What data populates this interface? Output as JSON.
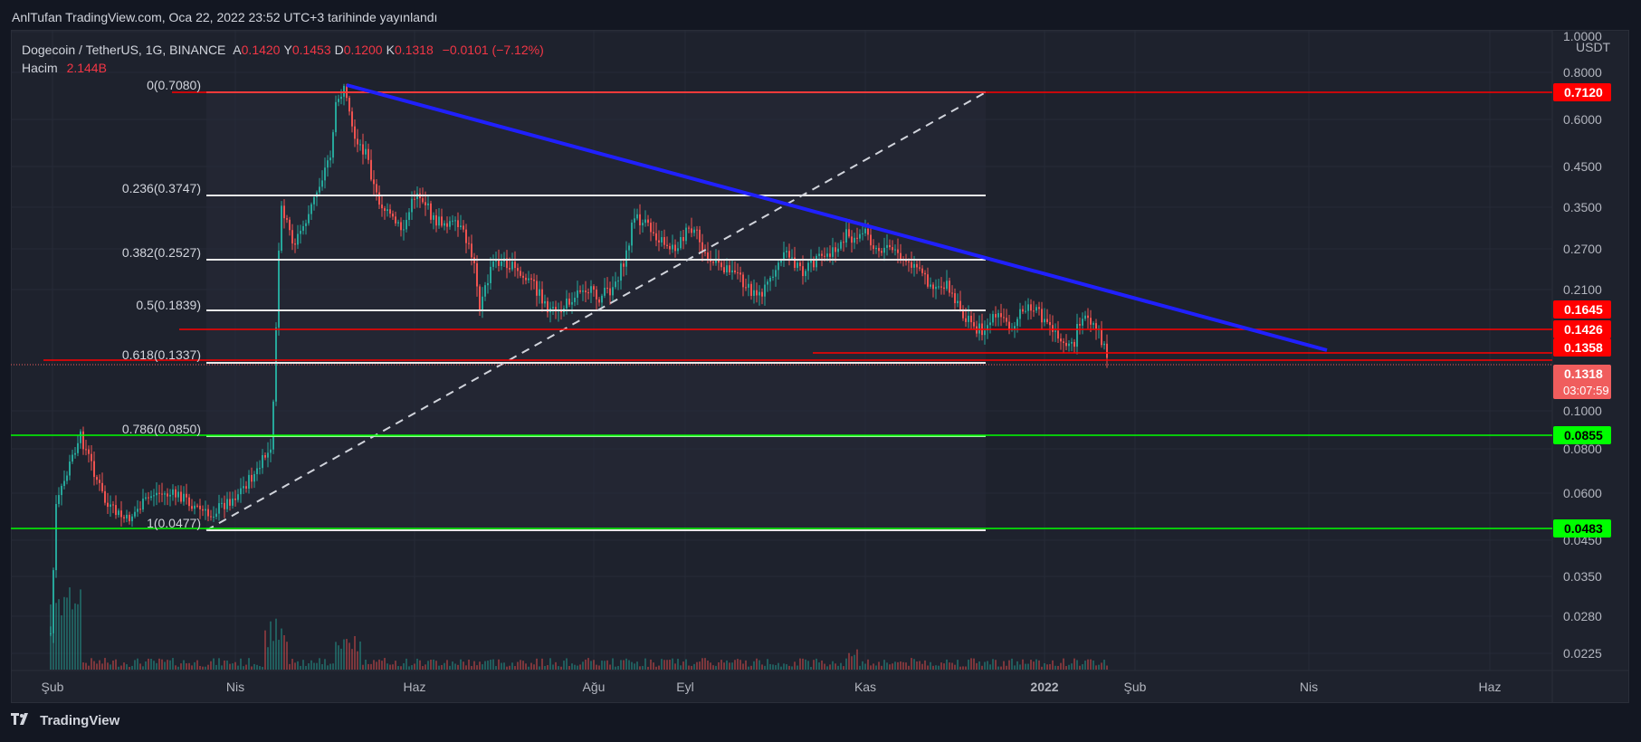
{
  "header": {
    "publish_line": "AnlTufan TradingView.com, Oca 22, 2022 23:52 UTC+3 tarihinde yayınlandı"
  },
  "legend": {
    "symbol": "Dogecoin / TetherUS, 1G, BINANCE",
    "ohlc": [
      {
        "k": "A",
        "v": "0.1420"
      },
      {
        "k": "Y",
        "v": "0.1453"
      },
      {
        "k": "D",
        "v": "0.1200"
      },
      {
        "k": "K",
        "v": "0.1318"
      }
    ],
    "change": "−0.0101 (−7.12%)",
    "volume_label": "Hacim",
    "volume_value": "2.144B"
  },
  "price_axis": {
    "currency": "USDT",
    "ticks": [
      "1.0000",
      "0.8000",
      "0.6000",
      "0.4500",
      "0.3500",
      "0.2700",
      "0.2100",
      "0.1000",
      "0.0800",
      "0.0600",
      "0.0450",
      "0.0350",
      "0.0280",
      "0.0225"
    ]
  },
  "price_badges": [
    {
      "label": "0.7120",
      "color": "#ff0000"
    },
    {
      "label": "0.1645",
      "color": "#ff0000"
    },
    {
      "label": "0.1426",
      "color": "#ff0000"
    },
    {
      "label": "0.1358",
      "color": "#ff0000"
    },
    {
      "label": "0.1318",
      "sub": "03:07:59",
      "color": "#f05d5d"
    },
    {
      "label": "0.0855",
      "color": "#00ff00"
    },
    {
      "label": "0.0483",
      "color": "#00ff00"
    }
  ],
  "time_axis": {
    "labels": [
      "Şub",
      "Nis",
      "Haz",
      "Ağu",
      "Eyl",
      "Kas",
      "2022",
      "Şub",
      "Nis",
      "Haz"
    ]
  },
  "fib_levels": [
    {
      "label": "0(0.7080)",
      "color": "#ffffff"
    },
    {
      "label": "0.236(0.3747)",
      "color": "#ffffff"
    },
    {
      "label": "0.382(0.2527)",
      "color": "#ffffff"
    },
    {
      "label": "0.5(0.1839)",
      "color": "#ffffff"
    },
    {
      "label": "0.618(0.1337)",
      "color": "#ffffff"
    },
    {
      "label": "0.786(0.0850)",
      "color": "#00ff00"
    },
    {
      "label": "1(0.0477)",
      "color": "#ffffff"
    }
  ],
  "colors": {
    "up": "#26a69a",
    "down": "#ef5350",
    "trendline": "#2020ff"
  },
  "footer": {
    "brand": "TradingView"
  }
}
